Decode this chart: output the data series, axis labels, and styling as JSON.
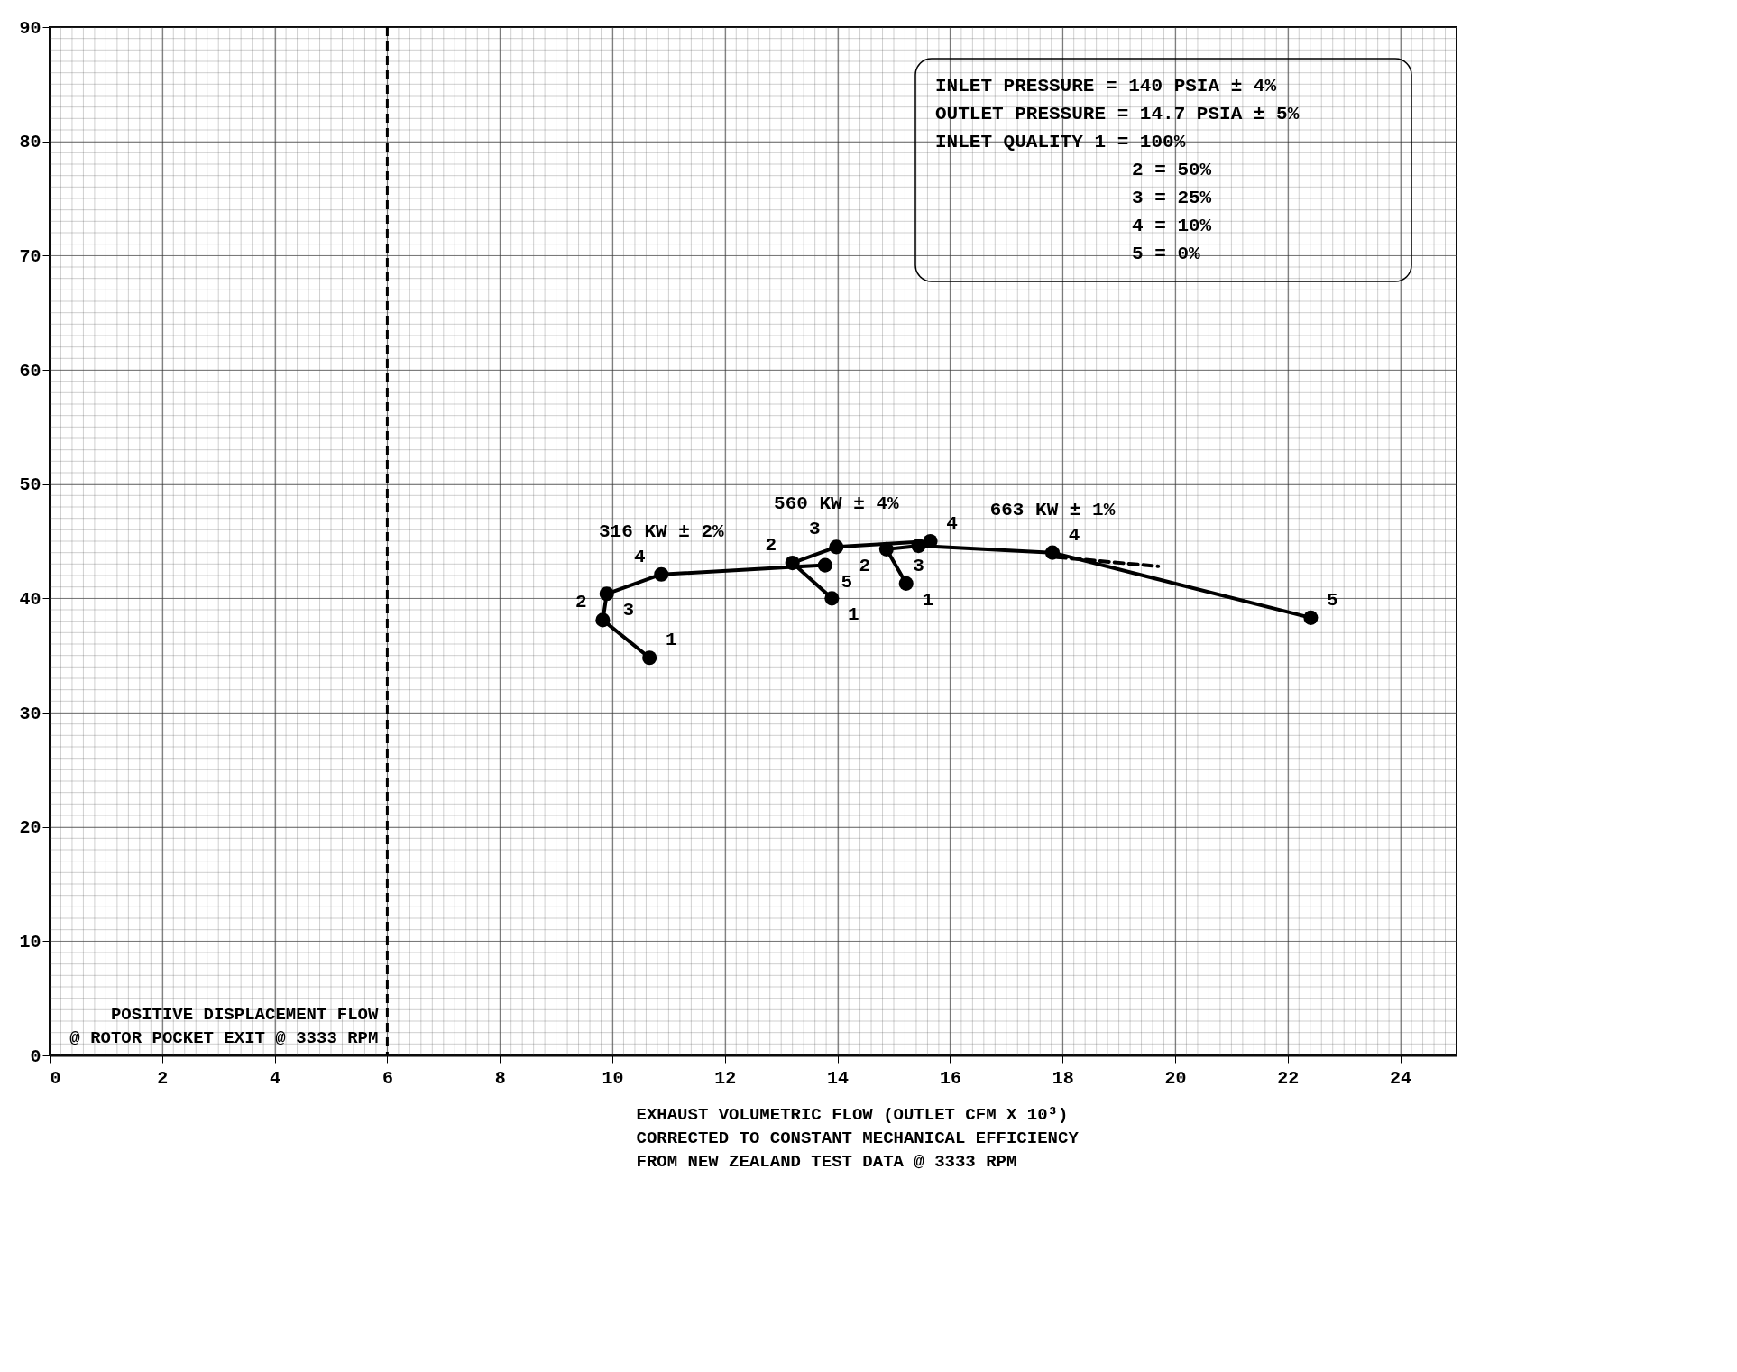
{
  "chart_data": {
    "type": "line",
    "xlabel": "EXHAUST VOLUMETRIC FLOW (OUTLET CFM X 10³)\nCORRECTED TO CONSTANT MECHANICAL EFFICIENCY\nFROM NEW ZEALAND TEST DATA @ 3333 RPM",
    "annotations": [
      "INLET PRESSURE   = 140 PSIA ± 4%",
      "OUTLET PRESSURE  = 14.7 PSIA ± 5%",
      "INLET QUALITY 1 = 100%",
      "2 =  50%",
      "3 =  25%",
      "4 =  10%",
      "5 =   0%",
      {
        "text": "1",
        "x": 10.66,
        "y": 34.8
      },
      {
        "text": "2",
        "x": 9.83,
        "y": 38.1
      },
      {
        "text": "3",
        "x": 9.9,
        "y": 40.4
      },
      {
        "text": "4",
        "x": 10.87,
        "y": 42.1
      },
      {
        "text": "5",
        "x": 13.78,
        "y": 42.9
      },
      {
        "text": "1",
        "x": 13.9,
        "y": 40.0
      },
      {
        "text": "2",
        "x": 13.2,
        "y": 43.1
      },
      {
        "text": "3",
        "x": 13.98,
        "y": 44.5
      },
      {
        "text": "4",
        "x": 15.65,
        "y": 45.0
      },
      {
        "text": "1",
        "x": 15.22,
        "y": 41.3
      },
      {
        "text": "2",
        "x": 14.87,
        "y": 44.3
      },
      {
        "text": "3",
        "x": 15.44,
        "y": 44.6
      },
      {
        "text": "4",
        "x": 17.82,
        "y": 44.0
      },
      {
        "text": "5",
        "x": 22.41,
        "y": 38.3
      }
    ],
    "series": [
      {
        "name": "316 KW ± 2%",
        "color": "#000000",
        "x": [
          10.66,
          9.83,
          9.9,
          10.87,
          13.78
        ],
        "values": [
          34.8,
          38.1,
          40.4,
          42.1,
          42.9
        ]
      },
      {
        "name": "560 KW ± 4%",
        "color": "#000000",
        "x": [
          13.9,
          13.2,
          13.98,
          15.65
        ],
        "values": [
          40.0,
          43.1,
          44.5,
          45.0
        ]
      },
      {
        "name": "663 KW ± 1%",
        "color": "#000000",
        "x": [
          15.22,
          14.87,
          15.44,
          17.82,
          22.41
        ],
        "values": [
          41.3,
          44.3,
          44.6,
          44.0,
          38.3
        ]
      },
      {
        "color": "#000000",
        "x": [
          17.9,
          19.7
        ],
        "values": [
          43.6,
          42.8
        ],
        "line_style": "dashed",
        "marker": "none"
      }
    ],
    "ref_lines": [
      {
        "axis": "x",
        "value": 6,
        "label": "POSITIVE DISPLACEMENT FLOW\n@ ROTOR POCKET EXIT @ 3333 RPM",
        "line_style": "dashed",
        "color": "#000000"
      }
    ],
    "xlim": [
      0,
      25
    ],
    "xticks": [
      0,
      2,
      4,
      6,
      8,
      10,
      12,
      14,
      16,
      18,
      20,
      22,
      24
    ],
    "ylim": [
      0,
      90
    ],
    "yticks": [
      0,
      10,
      20,
      30,
      40,
      50,
      60,
      70,
      80,
      90
    ],
    "grid": true,
    "marker": "circle",
    "line_style": "solid",
    "legend": false
  }
}
